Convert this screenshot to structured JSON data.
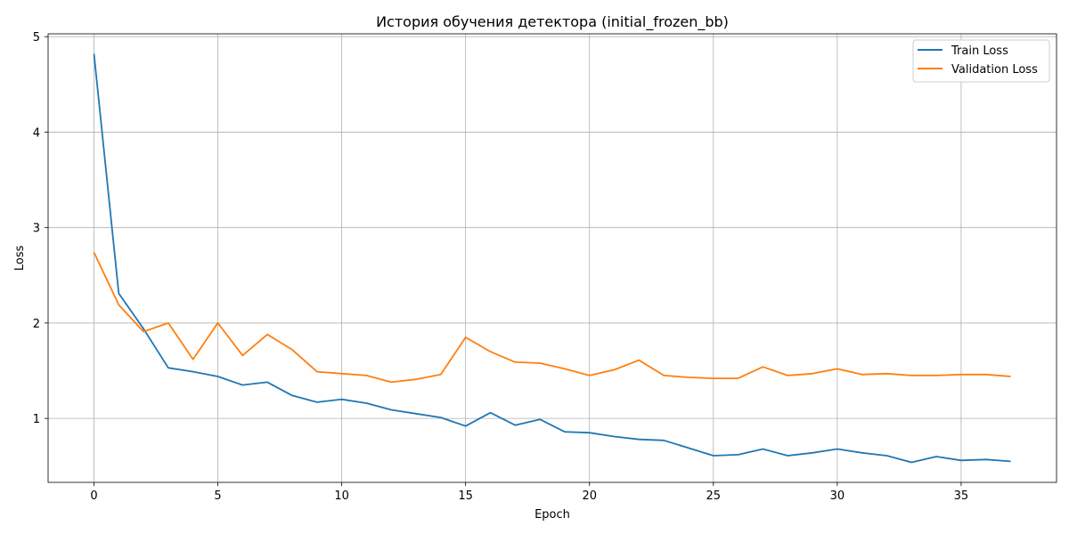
{
  "chart_data": {
    "type": "line",
    "title": "История обучения детектора (initial_frozen_bb)",
    "xlabel": "Epoch",
    "ylabel": "Loss",
    "xlim": [
      -1.85,
      38.85
    ],
    "ylim": [
      0.33,
      5.03
    ],
    "xticks": [
      0,
      5,
      10,
      15,
      20,
      25,
      30,
      35
    ],
    "yticks": [
      1,
      2,
      3,
      4,
      5
    ],
    "grid": true,
    "legend_position": "top-right",
    "x": [
      0,
      1,
      2,
      3,
      4,
      5,
      6,
      7,
      8,
      9,
      10,
      11,
      12,
      13,
      14,
      15,
      16,
      17,
      18,
      19,
      20,
      21,
      22,
      23,
      24,
      25,
      26,
      27,
      28,
      29,
      30,
      31,
      32,
      33,
      34,
      35,
      36,
      37
    ],
    "series": [
      {
        "name": "Train Loss",
        "color": "#1f77b4",
        "values": [
          4.82,
          2.31,
          1.94,
          1.53,
          1.49,
          1.44,
          1.35,
          1.38,
          1.24,
          1.17,
          1.2,
          1.16,
          1.09,
          1.05,
          1.01,
          0.92,
          1.06,
          0.93,
          0.99,
          0.86,
          0.85,
          0.81,
          0.78,
          0.77,
          0.69,
          0.61,
          0.62,
          0.68,
          0.61,
          0.64,
          0.68,
          0.64,
          0.61,
          0.54,
          0.6,
          0.56,
          0.57,
          0.55
        ]
      },
      {
        "name": "Validation Loss",
        "color": "#ff7f0e",
        "values": [
          2.74,
          2.19,
          1.91,
          2.0,
          1.62,
          2.0,
          1.66,
          1.88,
          1.72,
          1.49,
          1.47,
          1.45,
          1.38,
          1.41,
          1.46,
          1.85,
          1.7,
          1.59,
          1.58,
          1.52,
          1.45,
          1.51,
          1.61,
          1.45,
          1.43,
          1.42,
          1.42,
          1.54,
          1.45,
          1.47,
          1.52,
          1.46,
          1.47,
          1.45,
          1.45,
          1.46,
          1.46,
          1.44
        ]
      }
    ]
  }
}
